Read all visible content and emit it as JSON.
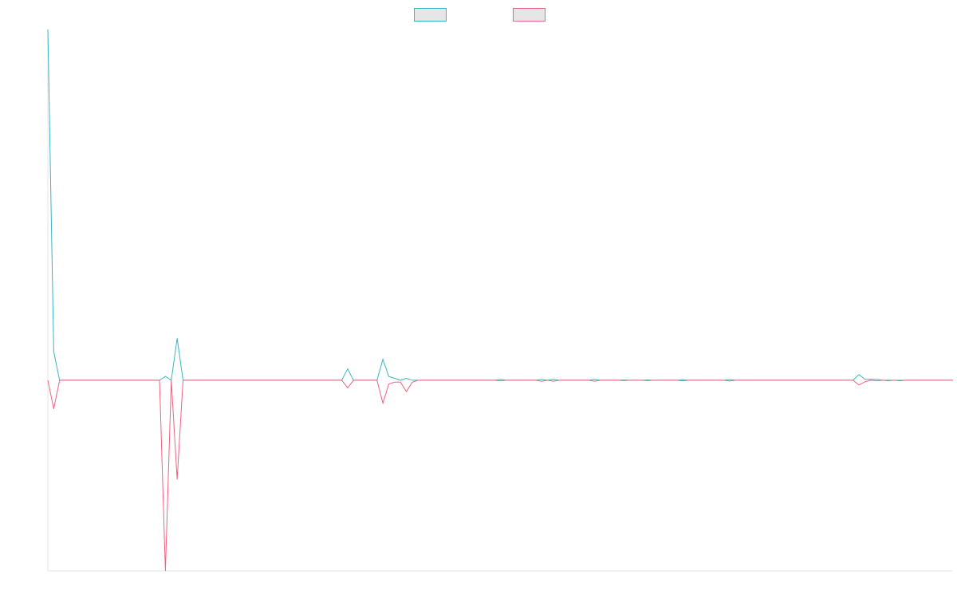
{
  "chart_data": {
    "type": "line",
    "title": "",
    "xlabel": "",
    "ylabel": "",
    "grid": false,
    "legend_position": "top-center",
    "legend_text_visible": false,
    "x_count": 155,
    "ylim": [
      -100,
      184
    ],
    "series": [
      {
        "color": "#3bb3c3",
        "legend_fill": "#e6e6e6",
        "points": [
          [
            0,
            184
          ],
          [
            1,
            15
          ],
          [
            2,
            0
          ],
          [
            19,
            0
          ],
          [
            20,
            2
          ],
          [
            21,
            0
          ],
          [
            22,
            22
          ],
          [
            23,
            0
          ],
          [
            50,
            0
          ],
          [
            51,
            6
          ],
          [
            52,
            0
          ],
          [
            56,
            0
          ],
          [
            57,
            11
          ],
          [
            58,
            2
          ],
          [
            59,
            1
          ],
          [
            60,
            0
          ],
          [
            61,
            1
          ],
          [
            62,
            0
          ],
          [
            64,
            0
          ],
          [
            65,
            0
          ],
          [
            67,
            0
          ],
          [
            68,
            0
          ],
          [
            72,
            0
          ],
          [
            76,
            0
          ],
          [
            77,
            0.5
          ],
          [
            78,
            0
          ],
          [
            83,
            0
          ],
          [
            84,
            0.5
          ],
          [
            85,
            0
          ],
          [
            86,
            0.5
          ],
          [
            87,
            0
          ],
          [
            92,
            0
          ],
          [
            93,
            0.5
          ],
          [
            94,
            0
          ],
          [
            97,
            0
          ],
          [
            98,
            0.2
          ],
          [
            99,
            0
          ],
          [
            101,
            0
          ],
          [
            102,
            0.2
          ],
          [
            103,
            0
          ],
          [
            107,
            0
          ],
          [
            108,
            0.3
          ],
          [
            109,
            0
          ],
          [
            115,
            0
          ],
          [
            116,
            0.4
          ],
          [
            117,
            0
          ],
          [
            137,
            0
          ],
          [
            138,
            3
          ],
          [
            139,
            0.5
          ],
          [
            140,
            0.5
          ],
          [
            141,
            0.5
          ],
          [
            142,
            0
          ],
          [
            143,
            0
          ],
          [
            144,
            0
          ],
          [
            145,
            0
          ],
          [
            146,
            0
          ],
          [
            147,
            0
          ],
          [
            154,
            0
          ]
        ]
      },
      {
        "color": "#f0637f",
        "legend_fill": "#e6e6e6",
        "points": [
          [
            0,
            0
          ],
          [
            1,
            -15
          ],
          [
            2,
            0
          ],
          [
            19,
            0
          ],
          [
            20,
            -100
          ],
          [
            21,
            0
          ],
          [
            22,
            -52
          ],
          [
            23,
            0
          ],
          [
            50,
            0
          ],
          [
            51,
            -4
          ],
          [
            52,
            0
          ],
          [
            56,
            0
          ],
          [
            57,
            -12
          ],
          [
            58,
            -2
          ],
          [
            59,
            -1
          ],
          [
            60,
            -1
          ],
          [
            61,
            -6
          ],
          [
            62,
            -1
          ],
          [
            63,
            0
          ],
          [
            64,
            0
          ],
          [
            65,
            0
          ],
          [
            67,
            0
          ],
          [
            68,
            0
          ],
          [
            72,
            0
          ],
          [
            76,
            0
          ],
          [
            77,
            -0.3
          ],
          [
            78,
            0
          ],
          [
            83,
            0
          ],
          [
            84,
            -0.5
          ],
          [
            85,
            0
          ],
          [
            86,
            -0.5
          ],
          [
            87,
            0
          ],
          [
            92,
            0
          ],
          [
            93,
            -0.5
          ],
          [
            94,
            0
          ],
          [
            97,
            0
          ],
          [
            98,
            -0.2
          ],
          [
            99,
            0
          ],
          [
            101,
            0
          ],
          [
            102,
            -0.2
          ],
          [
            103,
            0
          ],
          [
            107,
            0
          ],
          [
            108,
            -0.3
          ],
          [
            109,
            0
          ],
          [
            115,
            0
          ],
          [
            116,
            -0.4
          ],
          [
            117,
            0
          ],
          [
            137,
            0
          ],
          [
            138,
            -2.5
          ],
          [
            139,
            -0.8
          ],
          [
            140,
            0
          ],
          [
            141,
            -0.3
          ],
          [
            142,
            0
          ],
          [
            143,
            -0.3
          ],
          [
            144,
            0
          ],
          [
            145,
            -0.3
          ],
          [
            146,
            0
          ],
          [
            147,
            0
          ],
          [
            154,
            0
          ]
        ]
      }
    ]
  }
}
